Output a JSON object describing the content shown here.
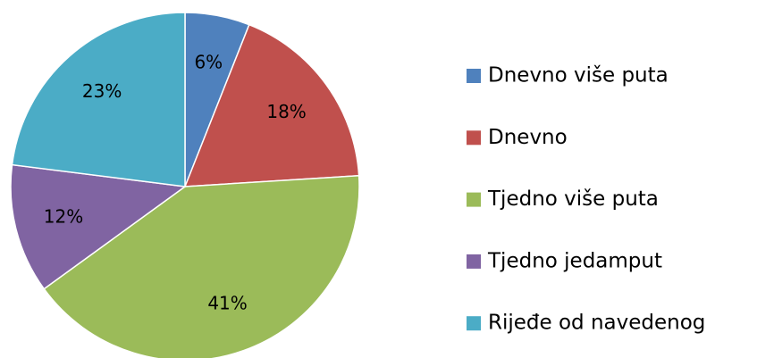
{
  "chart_data": {
    "type": "pie",
    "categories": [
      "Dnevno više puta",
      "Dnevno",
      "Tjedno više puta",
      "Tjedno jedamput",
      "Rijeđe od navedenog"
    ],
    "values": [
      6,
      18,
      41,
      12,
      23
    ],
    "value_labels": [
      "6%",
      "18%",
      "41%",
      "12%",
      "23%"
    ],
    "colors": [
      "#4f81bd",
      "#c0504d",
      "#9bbb59",
      "#8064a2",
      "#4bacc6"
    ],
    "legend": "right"
  }
}
